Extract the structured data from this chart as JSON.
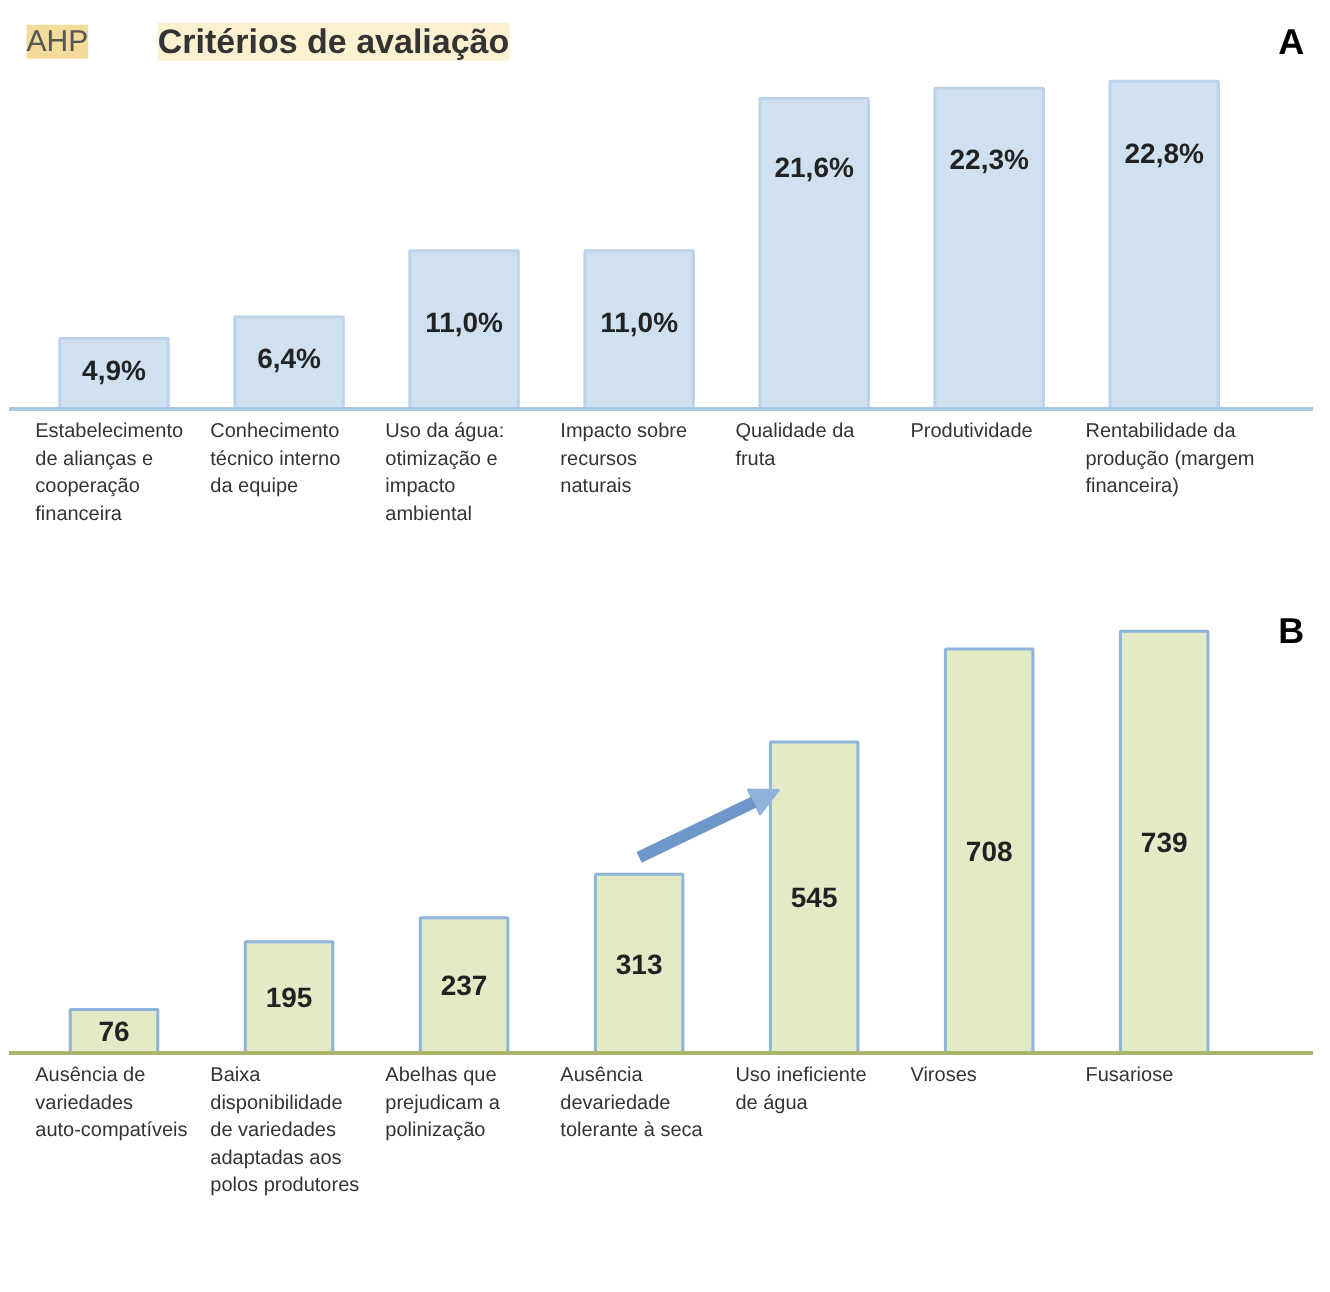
{
  "chart_data": [
    {
      "type": "bar",
      "title": "Critérios de avaliação",
      "annotations": [
        "AHP",
        "A"
      ],
      "categories": [
        "Estabelecimento de alianças e cooperação financeira",
        "Conhecimento técnico interno da equipe",
        "Uso da água: otimização e impacto ambiental",
        "Impacto sobre recursos naturais",
        "Qualidade da fruta",
        "Produtividade",
        "Rentabilidade da produção (margem financeira)"
      ],
      "values": [
        4.9,
        6.4,
        11.0,
        11.0,
        21.6,
        22.3,
        22.8
      ],
      "value_labels": [
        "4,9%",
        "6,4%",
        "11,0%",
        "11,0%",
        "21,6%",
        "22,3%",
        "22,8%"
      ],
      "color": "#cfe0f1",
      "grid": false
    },
    {
      "type": "bar",
      "annotations": [
        "B"
      ],
      "categories": [
        "Ausência de variedades auto-compatíveis",
        "Baixa disponibilidade de variedades adaptadas aos polos produtores",
        "Abelhas que prejudicam a polinização",
        "Ausência devariedade tolerante à seca",
        "Uso ineficiente de água",
        "Viroses",
        "Fusariose"
      ],
      "values": [
        76,
        195,
        237,
        313,
        545,
        708,
        739
      ],
      "data_labels": true,
      "color": "#e2eac6",
      "grid": false
    }
  ]
}
